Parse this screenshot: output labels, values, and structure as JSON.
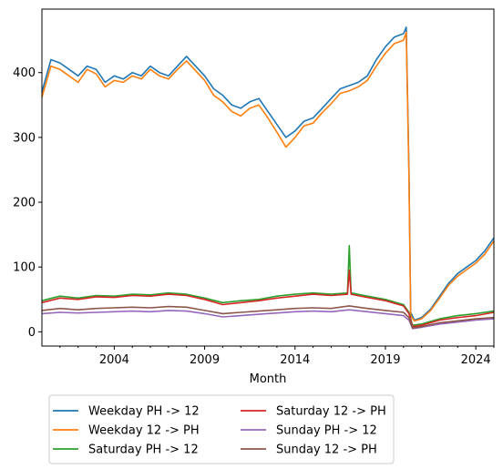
{
  "chart_data": {
    "type": "line",
    "title": "",
    "xlabel": "Month",
    "ylabel": "",
    "xlim": [
      2000.0,
      2025.0
    ],
    "ylim": [
      -22,
      498
    ],
    "x_ticks": [
      2004,
      2009,
      2014,
      2019,
      2024
    ],
    "x_tick_labels": [
      "2004",
      "2009",
      "2014",
      "2019",
      "2024"
    ],
    "y_ticks": [
      0,
      100,
      200,
      300,
      400
    ],
    "y_tick_labels": [
      "0",
      "100",
      "200",
      "300",
      "400"
    ],
    "grid": false,
    "legend_position": "bottom (below axes), two columns",
    "series": [
      {
        "name": "Weekday PH -> 12",
        "color": "#1f77b4",
        "points": [
          [
            2000.0,
            370
          ],
          [
            2000.5,
            420
          ],
          [
            2001.0,
            415
          ],
          [
            2001.5,
            405
          ],
          [
            2002.0,
            395
          ],
          [
            2002.5,
            410
          ],
          [
            2003.0,
            405
          ],
          [
            2003.5,
            385
          ],
          [
            2004.0,
            395
          ],
          [
            2004.5,
            390
          ],
          [
            2005.0,
            400
          ],
          [
            2005.5,
            395
          ],
          [
            2006.0,
            410
          ],
          [
            2006.5,
            400
          ],
          [
            2007.0,
            395
          ],
          [
            2007.5,
            410
          ],
          [
            2008.0,
            425
          ],
          [
            2008.5,
            410
          ],
          [
            2009.0,
            395
          ],
          [
            2009.5,
            375
          ],
          [
            2010.0,
            365
          ],
          [
            2010.5,
            350
          ],
          [
            2011.0,
            345
          ],
          [
            2011.5,
            355
          ],
          [
            2012.0,
            360
          ],
          [
            2012.5,
            340
          ],
          [
            2013.0,
            320
          ],
          [
            2013.5,
            300
          ],
          [
            2014.0,
            310
          ],
          [
            2014.5,
            325
          ],
          [
            2015.0,
            330
          ],
          [
            2015.5,
            345
          ],
          [
            2016.0,
            360
          ],
          [
            2016.5,
            375
          ],
          [
            2017.0,
            380
          ],
          [
            2017.5,
            385
          ],
          [
            2018.0,
            395
          ],
          [
            2018.5,
            420
          ],
          [
            2019.0,
            440
          ],
          [
            2019.5,
            455
          ],
          [
            2020.0,
            460
          ],
          [
            2020.15,
            470
          ],
          [
            2020.3,
            250
          ],
          [
            2020.4,
            30
          ],
          [
            2020.6,
            18
          ],
          [
            2021.0,
            22
          ],
          [
            2021.5,
            35
          ],
          [
            2022.0,
            55
          ],
          [
            2022.5,
            75
          ],
          [
            2023.0,
            90
          ],
          [
            2023.5,
            100
          ],
          [
            2024.0,
            110
          ],
          [
            2024.5,
            125
          ],
          [
            2025.0,
            145
          ]
        ]
      },
      {
        "name": "Weekday 12 -> PH",
        "color": "#ff7f0e",
        "points": [
          [
            2000.0,
            362
          ],
          [
            2000.5,
            410
          ],
          [
            2001.0,
            405
          ],
          [
            2001.5,
            395
          ],
          [
            2002.0,
            385
          ],
          [
            2002.5,
            405
          ],
          [
            2003.0,
            398
          ],
          [
            2003.5,
            378
          ],
          [
            2004.0,
            388
          ],
          [
            2004.5,
            385
          ],
          [
            2005.0,
            395
          ],
          [
            2005.5,
            390
          ],
          [
            2006.0,
            405
          ],
          [
            2006.5,
            395
          ],
          [
            2007.0,
            390
          ],
          [
            2007.5,
            405
          ],
          [
            2008.0,
            418
          ],
          [
            2008.5,
            403
          ],
          [
            2009.0,
            388
          ],
          [
            2009.5,
            365
          ],
          [
            2010.0,
            355
          ],
          [
            2010.5,
            340
          ],
          [
            2011.0,
            333
          ],
          [
            2011.5,
            345
          ],
          [
            2012.0,
            350
          ],
          [
            2012.5,
            330
          ],
          [
            2013.0,
            308
          ],
          [
            2013.5,
            285
          ],
          [
            2014.0,
            300
          ],
          [
            2014.5,
            318
          ],
          [
            2015.0,
            322
          ],
          [
            2015.5,
            338
          ],
          [
            2016.0,
            352
          ],
          [
            2016.5,
            368
          ],
          [
            2017.0,
            372
          ],
          [
            2017.5,
            378
          ],
          [
            2018.0,
            388
          ],
          [
            2018.5,
            410
          ],
          [
            2019.0,
            430
          ],
          [
            2019.5,
            445
          ],
          [
            2020.0,
            450
          ],
          [
            2020.15,
            462
          ],
          [
            2020.3,
            240
          ],
          [
            2020.4,
            25
          ],
          [
            2020.6,
            17
          ],
          [
            2021.0,
            20
          ],
          [
            2021.5,
            33
          ],
          [
            2022.0,
            52
          ],
          [
            2022.5,
            72
          ],
          [
            2023.0,
            86
          ],
          [
            2023.5,
            96
          ],
          [
            2024.0,
            106
          ],
          [
            2024.5,
            120
          ],
          [
            2025.0,
            140
          ]
        ]
      },
      {
        "name": "Saturday PH -> 12",
        "color": "#2ca02c",
        "points": [
          [
            2000.0,
            48
          ],
          [
            2001.0,
            55
          ],
          [
            2002.0,
            52
          ],
          [
            2003.0,
            56
          ],
          [
            2004.0,
            55
          ],
          [
            2005.0,
            58
          ],
          [
            2006.0,
            57
          ],
          [
            2007.0,
            60
          ],
          [
            2008.0,
            58
          ],
          [
            2009.0,
            52
          ],
          [
            2010.0,
            45
          ],
          [
            2011.0,
            48
          ],
          [
            2012.0,
            50
          ],
          [
            2013.0,
            55
          ],
          [
            2014.0,
            58
          ],
          [
            2015.0,
            60
          ],
          [
            2016.0,
            58
          ],
          [
            2016.9,
            60
          ],
          [
            2017.0,
            133
          ],
          [
            2017.1,
            60
          ],
          [
            2018.0,
            55
          ],
          [
            2019.0,
            50
          ],
          [
            2020.0,
            42
          ],
          [
            2020.3,
            30
          ],
          [
            2020.5,
            10
          ],
          [
            2021.0,
            12
          ],
          [
            2022.0,
            20
          ],
          [
            2023.0,
            25
          ],
          [
            2024.0,
            28
          ],
          [
            2025.0,
            32
          ]
        ]
      },
      {
        "name": "Saturday 12 -> PH",
        "color": "#d62728",
        "points": [
          [
            2000.0,
            45
          ],
          [
            2001.0,
            52
          ],
          [
            2002.0,
            50
          ],
          [
            2003.0,
            54
          ],
          [
            2004.0,
            53
          ],
          [
            2005.0,
            56
          ],
          [
            2006.0,
            55
          ],
          [
            2007.0,
            58
          ],
          [
            2008.0,
            56
          ],
          [
            2009.0,
            50
          ],
          [
            2010.0,
            42
          ],
          [
            2011.0,
            45
          ],
          [
            2012.0,
            48
          ],
          [
            2013.0,
            52
          ],
          [
            2014.0,
            55
          ],
          [
            2015.0,
            58
          ],
          [
            2016.0,
            56
          ],
          [
            2016.9,
            58
          ],
          [
            2017.0,
            95
          ],
          [
            2017.1,
            58
          ],
          [
            2018.0,
            53
          ],
          [
            2019.0,
            48
          ],
          [
            2020.0,
            40
          ],
          [
            2020.3,
            28
          ],
          [
            2020.5,
            8
          ],
          [
            2021.0,
            10
          ],
          [
            2022.0,
            18
          ],
          [
            2023.0,
            22
          ],
          [
            2024.0,
            25
          ],
          [
            2025.0,
            30
          ]
        ]
      },
      {
        "name": "Sunday PH -> 12",
        "color": "#9467bd",
        "points": [
          [
            2000.0,
            28
          ],
          [
            2001.0,
            30
          ],
          [
            2002.0,
            29
          ],
          [
            2003.0,
            30
          ],
          [
            2004.0,
            31
          ],
          [
            2005.0,
            32
          ],
          [
            2006.0,
            31
          ],
          [
            2007.0,
            33
          ],
          [
            2008.0,
            32
          ],
          [
            2009.0,
            28
          ],
          [
            2010.0,
            23
          ],
          [
            2011.0,
            25
          ],
          [
            2012.0,
            27
          ],
          [
            2013.0,
            29
          ],
          [
            2014.0,
            31
          ],
          [
            2015.0,
            32
          ],
          [
            2016.0,
            31
          ],
          [
            2017.0,
            34
          ],
          [
            2018.0,
            31
          ],
          [
            2019.0,
            28
          ],
          [
            2020.0,
            25
          ],
          [
            2020.3,
            18
          ],
          [
            2020.5,
            5
          ],
          [
            2021.0,
            7
          ],
          [
            2022.0,
            12
          ],
          [
            2023.0,
            15
          ],
          [
            2024.0,
            18
          ],
          [
            2025.0,
            20
          ]
        ]
      },
      {
        "name": "Sunday 12 -> PH",
        "color": "#8c564b",
        "points": [
          [
            2000.0,
            33
          ],
          [
            2001.0,
            36
          ],
          [
            2002.0,
            34
          ],
          [
            2003.0,
            36
          ],
          [
            2004.0,
            37
          ],
          [
            2005.0,
            38
          ],
          [
            2006.0,
            37
          ],
          [
            2007.0,
            39
          ],
          [
            2008.0,
            38
          ],
          [
            2009.0,
            33
          ],
          [
            2010.0,
            28
          ],
          [
            2011.0,
            30
          ],
          [
            2012.0,
            32
          ],
          [
            2013.0,
            34
          ],
          [
            2014.0,
            36
          ],
          [
            2015.0,
            37
          ],
          [
            2016.0,
            36
          ],
          [
            2017.0,
            40
          ],
          [
            2018.0,
            36
          ],
          [
            2019.0,
            33
          ],
          [
            2020.0,
            30
          ],
          [
            2020.3,
            22
          ],
          [
            2020.5,
            6
          ],
          [
            2021.0,
            8
          ],
          [
            2022.0,
            14
          ],
          [
            2023.0,
            17
          ],
          [
            2024.0,
            20
          ],
          [
            2025.0,
            22
          ]
        ]
      }
    ]
  }
}
